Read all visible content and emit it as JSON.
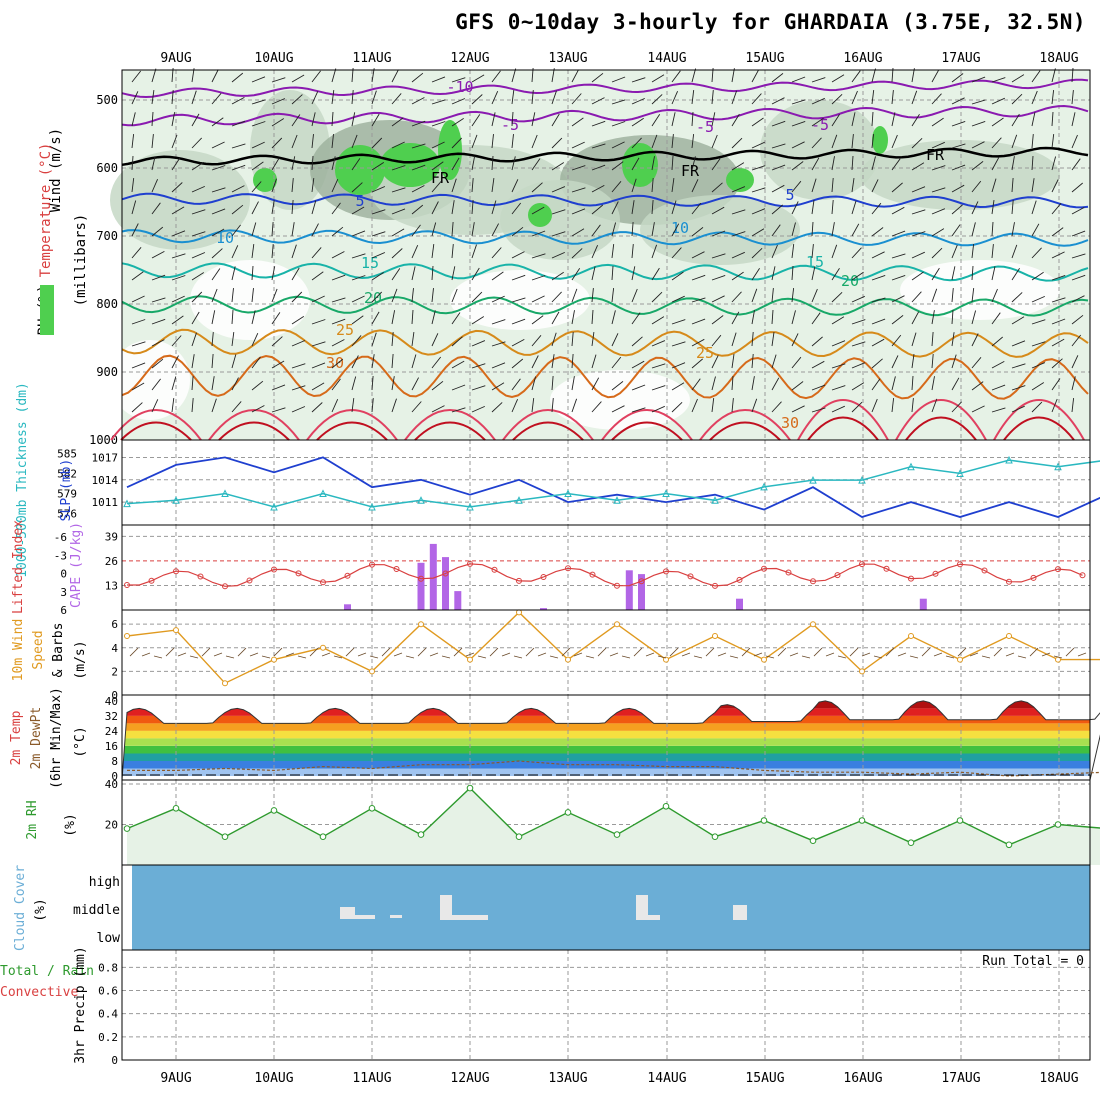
{
  "title": "GFS 0~10day 3-hourly for GHARDAIA (3.75E, 32.5N)",
  "date_labels": [
    "9AUG",
    "10AUG",
    "11AUG",
    "12AUG",
    "13AUG",
    "14AUG",
    "15AUG",
    "16AUG",
    "17AUG",
    "18AUG"
  ],
  "colors": {
    "frame": "#000000",
    "grid": "#9a9a9a",
    "rh_light": "#e6f2e6",
    "rh_mid": "#c6d8c6",
    "rh_dark": "#9fb39f",
    "rh_green": "#4fcf4f",
    "slp": "#1f3fcf",
    "thickness": "#2ab8c0",
    "lifted_index": "#d94040",
    "cape": "#b266e6",
    "wind": "#e09a20",
    "rh2m": "#2e9a2e",
    "cloud_bg": "#6baed6",
    "cloud_box": "#e8e8e8"
  },
  "panels": {
    "upper": {
      "label_wind": "Wind (m/s)",
      "label_temp": "Temperature (°C)",
      "label_rh": "RH (%)",
      "label_unit": "(millibars)",
      "pressure_ticks": [
        "500",
        "600",
        "700",
        "800",
        "900",
        "1000"
      ],
      "isotherm_labels": [
        {
          "text": "-10",
          "color": "#8a1ab0"
        },
        {
          "text": "-5",
          "color": "#8a1ab0"
        },
        {
          "text": "-5",
          "color": "#8a1ab0"
        },
        {
          "text": "-5",
          "color": "#8a1ab0"
        },
        {
          "text": "FR",
          "color": "#000000"
        },
        {
          "text": "FR",
          "color": "#000000"
        },
        {
          "text": "FR",
          "color": "#000000"
        },
        {
          "text": "5",
          "color": "#1f3fcf"
        },
        {
          "text": "5",
          "color": "#1f3fcf"
        },
        {
          "text": "10",
          "color": "#1a8fd0"
        },
        {
          "text": "10",
          "color": "#1a8fd0"
        },
        {
          "text": "15",
          "color": "#18b3a8"
        },
        {
          "text": "15",
          "color": "#18b3a8"
        },
        {
          "text": "20",
          "color": "#18a868"
        },
        {
          "text": "20",
          "color": "#18a868"
        },
        {
          "text": "25",
          "color": "#d68a1a"
        },
        {
          "text": "25",
          "color": "#d68a1a"
        },
        {
          "text": "30",
          "color": "#d66a1a"
        },
        {
          "text": "30",
          "color": "#d66a1a"
        }
      ]
    },
    "slp": {
      "label_thick": "1000-500mb Thickness (dm)",
      "label_slp": "SLP (mb)",
      "thick_ticks": [
        "585",
        "582",
        "579",
        "576"
      ],
      "slp_ticks": [
        "1017",
        "1014",
        "1011"
      ]
    },
    "cape": {
      "label_li": "Lifted Index",
      "label_cape": "CAPE (J/kg)",
      "li_ticks": [
        "-6",
        "-3",
        "0",
        "3",
        "6"
      ],
      "cape_ticks": [
        "39",
        "26",
        "13"
      ]
    },
    "wind": {
      "label_a": "10m Wind",
      "label_b": "Speed",
      "label_c": "& Barbs",
      "label_unit": "(m/s)",
      "ticks": [
        "6",
        "4",
        "2",
        "0"
      ]
    },
    "temp": {
      "label_a": "2m Temp",
      "label_b": "2m DewPt",
      "label_c": "(6hr Min/Max)",
      "label_unit": "(°C)",
      "ticks": [
        "40",
        "32",
        "24",
        "16",
        "8",
        "0"
      ]
    },
    "rh": {
      "label": "2m RH",
      "label_unit": "(%)",
      "ticks": [
        "40",
        "20"
      ]
    },
    "cloud": {
      "label": "Cloud Cover",
      "label_unit": "(%)",
      "levels": [
        "high",
        "middle",
        "low"
      ]
    },
    "precip": {
      "label_a": "Total / Rain",
      "label_b": "Convective",
      "label_c": "3hr Precip (mm)",
      "ticks": [
        "0.8",
        "0.6",
        "0.4",
        "0.2",
        "0"
      ],
      "run_total": "Run Total = 0"
    }
  },
  "chart_data": [
    {
      "type": "line",
      "panel": "SLP (mb)",
      "x": [
        "8AUG 12Z",
        "9AUG 00Z",
        "9AUG 12Z",
        "10AUG 00Z",
        "10AUG 12Z",
        "11AUG 00Z",
        "11AUG 12Z",
        "12AUG 00Z",
        "12AUG 12Z",
        "13AUG 00Z",
        "13AUG 12Z",
        "14AUG 00Z",
        "14AUG 12Z",
        "15AUG 00Z",
        "15AUG 12Z",
        "16AUG 00Z",
        "16AUG 12Z",
        "17AUG 00Z",
        "17AUG 12Z",
        "18AUG 00Z",
        "18AUG 12Z"
      ],
      "series": [
        {
          "name": "SLP",
          "values": [
            1013,
            1016,
            1017,
            1015,
            1017,
            1013,
            1014,
            1012,
            1014,
            1011,
            1012,
            1011,
            1012,
            1010,
            1013,
            1009,
            1011,
            1009,
            1011,
            1009,
            1012
          ]
        },
        {
          "name": "1000-500mb Thickness",
          "values": [
            577.5,
            578,
            579,
            577,
            579,
            577,
            578,
            577,
            578,
            579,
            578,
            579,
            578,
            580,
            581,
            581,
            583,
            582,
            584,
            583,
            584
          ]
        }
      ]
    },
    {
      "type": "bar",
      "panel": "CAPE (J/kg)",
      "categories": [
        "10AUG 18Z",
        "11AUG 12Z",
        "11AUG 15Z",
        "11AUG 18Z",
        "11AUG 21Z",
        "12AUG 18Z",
        "13AUG 15Z",
        "13AUG 18Z",
        "14AUG 18Z",
        "16AUG 15Z"
      ],
      "values": [
        3,
        25,
        35,
        28,
        10,
        1,
        21,
        19,
        6,
        6
      ],
      "lifted_index": [
        2,
        3,
        4,
        3,
        1,
        2,
        3,
        1,
        2,
        2
      ]
    },
    {
      "type": "line",
      "panel": "10m Wind Speed (m/s)",
      "x": [
        "8AUG 12Z",
        "9AUG 00Z",
        "9AUG 12Z",
        "10AUG 00Z",
        "10AUG 12Z",
        "11AUG 00Z",
        "11AUG 12Z",
        "12AUG 00Z",
        "12AUG 12Z",
        "13AUG 00Z",
        "13AUG 12Z",
        "14AUG 00Z",
        "14AUG 12Z",
        "15AUG 00Z",
        "15AUG 12Z",
        "16AUG 00Z",
        "16AUG 12Z",
        "17AUG 00Z",
        "17AUG 12Z",
        "18AUG 00Z",
        "18AUG 12Z"
      ],
      "values": [
        5,
        5.5,
        1,
        3,
        4,
        2,
        6,
        3,
        7,
        3,
        6,
        3,
        5,
        3,
        6,
        2,
        5,
        3,
        5,
        3,
        3
      ],
      "ylim": [
        0,
        7
      ]
    },
    {
      "type": "area",
      "panel": "2m Temp (°C)",
      "x": [
        "8AUG 12Z",
        "9AUG 00Z",
        "9AUG 12Z",
        "10AUG 00Z",
        "10AUG 12Z",
        "11AUG 00Z",
        "11AUG 12Z",
        "12AUG 00Z",
        "12AUG 12Z",
        "13AUG 00Z",
        "13AUG 12Z",
        "14AUG 00Z",
        "14AUG 12Z",
        "15AUG 00Z",
        "15AUG 12Z",
        "16AUG 00Z",
        "16AUG 12Z",
        "17AUG 00Z",
        "17AUG 12Z",
        "18AUG 00Z",
        "18AUG 12Z"
      ],
      "series": [
        {
          "name": "2m Temp",
          "values": [
            35,
            28,
            36,
            28,
            36,
            28,
            37,
            28,
            36,
            28,
            36,
            28,
            37,
            29,
            39,
            30,
            40,
            30,
            40,
            30,
            30
          ]
        },
        {
          "name": "2m DewPt",
          "values": [
            3,
            3,
            4,
            3,
            5,
            4,
            6,
            6,
            8,
            6,
            6,
            5,
            5,
            3,
            2,
            2,
            1,
            2,
            0,
            1,
            2
          ]
        }
      ],
      "ylim": [
        0,
        40
      ]
    },
    {
      "type": "area",
      "panel": "2m RH (%)",
      "x": [
        "8AUG 12Z",
        "9AUG 00Z",
        "9AUG 12Z",
        "10AUG 00Z",
        "10AUG 12Z",
        "11AUG 00Z",
        "11AUG 12Z",
        "12AUG 00Z",
        "12AUG 12Z",
        "13AUG 00Z",
        "13AUG 12Z",
        "14AUG 00Z",
        "14AUG 12Z",
        "15AUG 00Z",
        "15AUG 12Z",
        "16AUG 00Z",
        "16AUG 12Z",
        "17AUG 00Z",
        "17AUG 12Z",
        "18AUG 00Z",
        "18AUG 12Z"
      ],
      "values": [
        18,
        28,
        14,
        27,
        14,
        28,
        15,
        38,
        14,
        26,
        15,
        29,
        14,
        22,
        12,
        22,
        11,
        22,
        10,
        20,
        18
      ],
      "ylim": [
        0,
        42
      ]
    },
    {
      "type": "bar",
      "panel": "3hr Precip (mm)",
      "categories": [],
      "values": [],
      "ylim": [
        0,
        1
      ]
    }
  ]
}
